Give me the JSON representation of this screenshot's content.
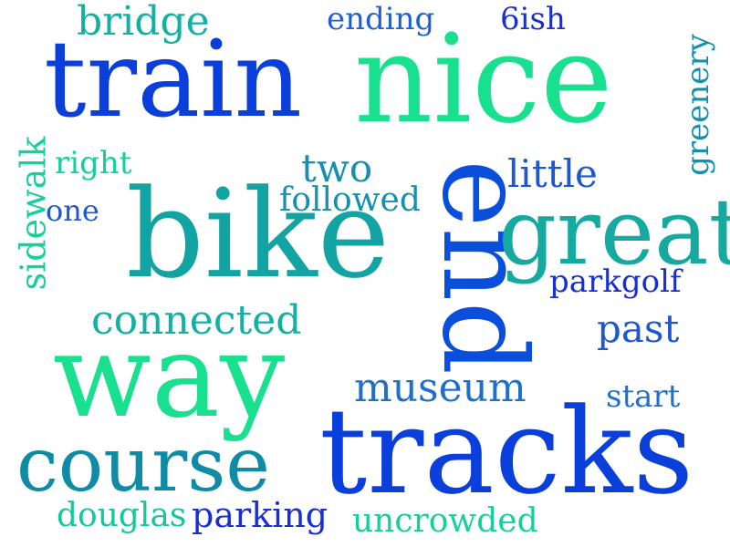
{
  "palette": {
    "blue": "#0a3fdc",
    "royal": "#1f57cf",
    "teal": "#14a3a3",
    "sea": "#0f8ba6",
    "mint": "#19e08f",
    "green": "#15cf99",
    "navy": "#1a1fcf"
  },
  "words": [
    {
      "id": "train",
      "text": "train",
      "color": "#0a3fdc"
    },
    {
      "id": "nice",
      "text": "nice",
      "color": "#19e08f"
    },
    {
      "id": "bike",
      "text": "bike",
      "color": "#14a3a3"
    },
    {
      "id": "end",
      "text": "end",
      "color": "#0a4fdc"
    },
    {
      "id": "great",
      "text": "great",
      "color": "#15a99f"
    },
    {
      "id": "way",
      "text": "way",
      "color": "#19e08f"
    },
    {
      "id": "tracks",
      "text": "tracks",
      "color": "#0a3fdc"
    },
    {
      "id": "course",
      "text": "course",
      "color": "#0f8ba6"
    },
    {
      "id": "bridge",
      "text": "bridge",
      "color": "#15b0a4"
    },
    {
      "id": "ending",
      "text": "ending",
      "color": "#1f5fd3"
    },
    {
      "id": "6ish",
      "text": "6ish",
      "color": "#1a2fcf"
    },
    {
      "id": "greenery",
      "text": "greenery",
      "color": "#1390b0"
    },
    {
      "id": "sidewalk",
      "text": "sidewalk",
      "color": "#15d09a"
    },
    {
      "id": "right",
      "text": "right",
      "color": "#15d09a"
    },
    {
      "id": "one",
      "text": "one",
      "color": "#1f57cf"
    },
    {
      "id": "two",
      "text": "two",
      "color": "#1490b0"
    },
    {
      "id": "followed",
      "text": "followed",
      "color": "#1490b0"
    },
    {
      "id": "little",
      "text": "little",
      "color": "#1f57cf"
    },
    {
      "id": "parkgolf",
      "text": "parkgolf",
      "color": "#1a2fcf"
    },
    {
      "id": "connected",
      "text": "connected",
      "color": "#15b0a4"
    },
    {
      "id": "past",
      "text": "past",
      "color": "#1f57cf"
    },
    {
      "id": "museum",
      "text": "museum",
      "color": "#1f6fcf"
    },
    {
      "id": "start",
      "text": "start",
      "color": "#1f6fcf"
    },
    {
      "id": "douglas",
      "text": "douglas",
      "color": "#15c79c"
    },
    {
      "id": "parking",
      "text": "parking",
      "color": "#1a2fcf"
    },
    {
      "id": "uncrowded",
      "text": "uncrowded",
      "color": "#15d09a"
    }
  ]
}
